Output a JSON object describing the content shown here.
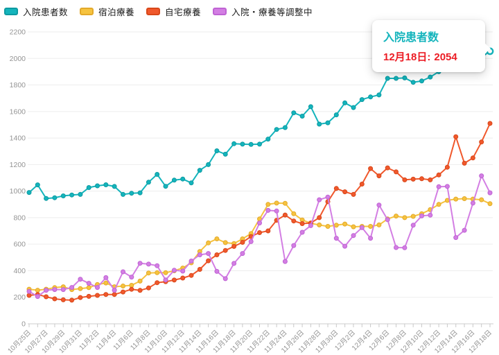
{
  "colors": {
    "grid": "#ededed",
    "axis_line": "#cccccc",
    "tick": "#c9c9c9",
    "axis_label": "#949494",
    "tooltip_title": "#14b4bc",
    "tooltip_value": "#ec1c24",
    "legend_text": "#1a1a1a"
  },
  "tooltip": {
    "title": "入院患者数",
    "date_label": "12月18日:",
    "value": "2054"
  },
  "chart_data": {
    "type": "line",
    "title": "",
    "xlabel": "",
    "ylabel": "",
    "ylim": [
      0,
      2200
    ],
    "y_ticks": [
      0,
      200,
      400,
      600,
      800,
      1000,
      1200,
      1400,
      1600,
      1800,
      2000,
      2200
    ],
    "x_label_every": 2,
    "grid": "horizontal",
    "legend_position": "top-left",
    "categories": [
      "10月25日",
      "10月26日",
      "10月27日",
      "10月28日",
      "10月29日",
      "10月30日",
      "10月31日",
      "11月1日",
      "11月2日",
      "11月3日",
      "11月4日",
      "11月5日",
      "11月6日",
      "11月7日",
      "11月8日",
      "11月9日",
      "11月10日",
      "11月11日",
      "11月12日",
      "11月13日",
      "11月14日",
      "11月15日",
      "11月16日",
      "11月17日",
      "11月18日",
      "11月19日",
      "11月20日",
      "11月21日",
      "11月22日",
      "11月23日",
      "11月24日",
      "11月25日",
      "11月26日",
      "11月27日",
      "11月28日",
      "11月29日",
      "11月30日",
      "12月1日",
      "12月2日",
      "12月3日",
      "12月4日",
      "12月5日",
      "12月6日",
      "12月7日",
      "12月8日",
      "12月9日",
      "12月10日",
      "12月11日",
      "12月12日",
      "12月13日",
      "12月14日",
      "12月15日",
      "12月16日",
      "12月17日",
      "12月18日"
    ],
    "series": [
      {
        "key": "hotel",
        "name": "宿泊療養",
        "color": "#f6c33f",
        "border": "#e3a92a",
        "values": [
          261,
          253,
          261,
          273,
          279,
          258,
          265,
          273,
          296,
          308,
          279,
          285,
          290,
          322,
          383,
          385,
          385,
          400,
          420,
          460,
          545,
          610,
          640,
          612,
          605,
          640,
          680,
          790,
          900,
          910,
          908,
          830,
          783,
          757,
          745,
          734,
          743,
          752,
          731,
          734,
          734,
          745,
          790,
          812,
          800,
          810,
          830,
          860,
          900,
          930,
          940,
          943,
          940,
          935,
          905
        ]
      },
      {
        "key": "home",
        "name": "自宅療養",
        "color": "#f0582c",
        "border": "#d84719",
        "values": [
          214,
          221,
          204,
          188,
          181,
          178,
          198,
          207,
          214,
          221,
          221,
          240,
          260,
          252,
          270,
          310,
          317,
          330,
          345,
          365,
          410,
          475,
          520,
          553,
          583,
          614,
          658,
          687,
          700,
          780,
          820,
          775,
          755,
          760,
          800,
          920,
          1020,
          995,
          975,
          1053,
          1170,
          1115,
          1175,
          1145,
          1085,
          1090,
          1093,
          1085,
          1122,
          1180,
          1410,
          1210,
          1250,
          1370,
          1510
        ]
      },
      {
        "key": "adjusting",
        "name": "入院・療養等調整中",
        "color": "#d37ee3",
        "border": "#bf63d4",
        "values": [
          244,
          206,
          253,
          258,
          258,
          274,
          336,
          305,
          274,
          348,
          253,
          392,
          352,
          456,
          450,
          438,
          331,
          404,
          397,
          473,
          520,
          530,
          395,
          340,
          455,
          530,
          620,
          760,
          855,
          850,
          470,
          590,
          690,
          740,
          935,
          955,
          645,
          585,
          665,
          725,
          645,
          895,
          785,
          575,
          573,
          743,
          813,
          819,
          1033,
          1035,
          650,
          705,
          910,
          1115,
          987
        ]
      },
      {
        "key": "hospitalized",
        "name": "入院患者数",
        "color": "#14b4bc",
        "border": "#0d9aa1",
        "highlight_last": true,
        "values": [
          990,
          1047,
          945,
          950,
          964,
          971,
          975,
          1027,
          1040,
          1048,
          1035,
          975,
          984,
          987,
          1067,
          1126,
          1036,
          1083,
          1091,
          1062,
          1157,
          1200,
          1304,
          1278,
          1357,
          1354,
          1352,
          1354,
          1392,
          1465,
          1479,
          1590,
          1565,
          1636,
          1505,
          1515,
          1575,
          1665,
          1630,
          1690,
          1710,
          1725,
          1850,
          1850,
          1853,
          1820,
          1830,
          1860,
          1900,
          1930,
          1960,
          1985,
          2005,
          2010,
          2054
        ]
      }
    ],
    "legend_order": [
      "hospitalized",
      "hotel",
      "home",
      "adjusting"
    ]
  }
}
